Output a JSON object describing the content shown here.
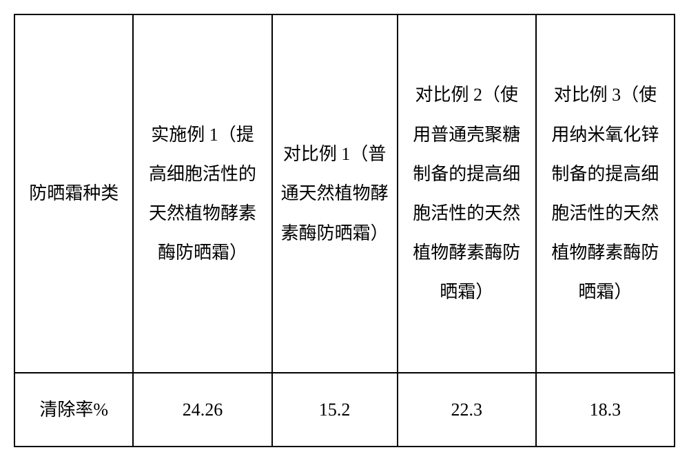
{
  "table": {
    "columns_widths": [
      "18%",
      "21%",
      "19%",
      "21%",
      "21%"
    ],
    "border_color": "#000000",
    "background_color": "#ffffff",
    "text_color": "#000000",
    "font_size": 26,
    "line_height": 2.2,
    "header_row": [
      "防晒霜种类",
      "实施例 1（提高细胞活性的天然植物酵素酶防晒霜）",
      "对比例 1（普通天然植物酵素酶防晒霜）",
      "对比例 2（使用普通壳聚糖制备的提高细胞活性的天然植物酵素酶防晒霜）",
      "对比例 3（使用纳米氧化锌制备的提高细胞活性的天然植物酵素酶防晒霜）"
    ],
    "data_rows": [
      {
        "label": "清除率%",
        "values": [
          "24.26",
          "15.2",
          "22.3",
          "18.3"
        ]
      }
    ]
  }
}
